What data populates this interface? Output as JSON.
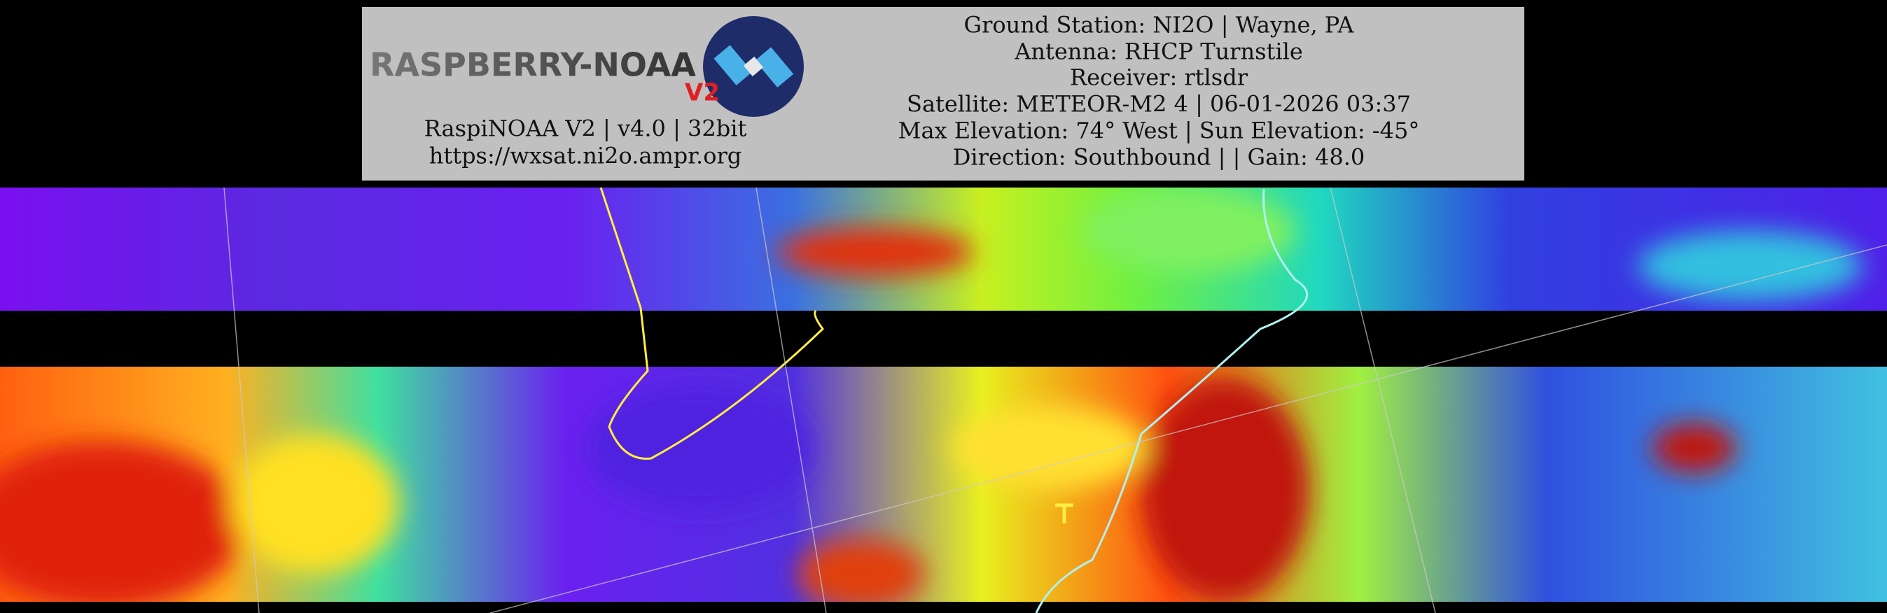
{
  "header": {
    "logo": {
      "text": "RASPBERRY-NOAA",
      "badge": "V2"
    },
    "left_lines": [
      "RaspiNOAA V2 | v4.0 | 32bit",
      "https://wxsat.ni2o.ampr.org"
    ],
    "right_lines": [
      "Ground Station: NI2O | Wayne, PA",
      "Antenna: RHCP Turnstile",
      "Receiver: rtlsdr",
      "Satellite: METEOR-M2 4 | 06-01-2026 03:37",
      "Max Elevation: 74° West | Sun Elevation: -45°",
      "Direction: Southbound | | Gain: 48.0"
    ]
  }
}
